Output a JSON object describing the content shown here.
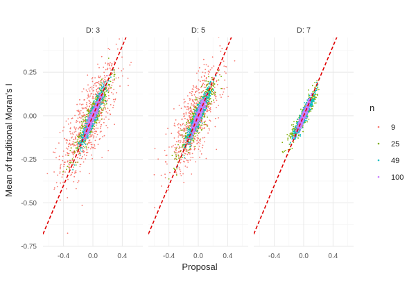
{
  "chart_data": {
    "type": "scatter",
    "title": "",
    "xlabel": "Proposal",
    "ylabel": "Mean of traditional Moran's I",
    "xlim": [
      -0.68,
      0.68
    ],
    "ylim": [
      -0.75,
      0.45
    ],
    "x_ticks": [
      -0.4,
      0.0,
      0.4
    ],
    "x_tick_labels": [
      "-0.4",
      "0.0",
      "0.4"
    ],
    "y_ticks": [
      -0.75,
      -0.5,
      -0.25,
      0.0,
      0.25
    ],
    "y_tick_labels": [
      "-0.75",
      "-0.50",
      "-0.25",
      "0.00",
      "0.25"
    ],
    "grid": true,
    "legend": {
      "title": "n",
      "position": "right",
      "entries": [
        {
          "label": "9",
          "color": "#F8766D"
        },
        {
          "label": "25",
          "color": "#7CAE00"
        },
        {
          "label": "49",
          "color": "#00BFC4"
        },
        {
          "label": "100",
          "color": "#C77CFF"
        }
      ]
    },
    "reference_line": {
      "slope": 1,
      "intercept": 0,
      "color": "#E00000",
      "style": "dashed"
    },
    "panels": [
      {
        "label": "D: 3",
        "series": [
          {
            "name": "9",
            "color": "#F8766D",
            "x_center": -0.05,
            "x_sd": 0.19,
            "slope": 0.62,
            "y_sd": 0.11,
            "count": 700,
            "x_range": [
              -0.62,
              0.62
            ]
          },
          {
            "name": "25",
            "color": "#7CAE00",
            "x_center": 0.0,
            "x_sd": 0.13,
            "slope": 0.82,
            "y_sd": 0.045,
            "count": 420,
            "x_range": [
              -0.45,
              0.45
            ]
          },
          {
            "name": "49",
            "color": "#00BFC4",
            "x_center": 0.0,
            "x_sd": 0.085,
            "slope": 0.92,
            "y_sd": 0.028,
            "count": 550,
            "x_range": [
              -0.3,
              0.3
            ]
          },
          {
            "name": "100",
            "color": "#C77CFF",
            "x_center": 0.0,
            "x_sd": 0.055,
            "slope": 0.96,
            "y_sd": 0.018,
            "count": 650,
            "x_range": [
              -0.2,
              0.2
            ]
          }
        ]
      },
      {
        "label": "D: 5",
        "series": [
          {
            "name": "9",
            "color": "#F8766D",
            "x_center": -0.05,
            "x_sd": 0.18,
            "slope": 0.6,
            "y_sd": 0.1,
            "count": 650,
            "x_range": [
              -0.6,
              0.6
            ]
          },
          {
            "name": "25",
            "color": "#7CAE00",
            "x_center": 0.0,
            "x_sd": 0.12,
            "slope": 0.8,
            "y_sd": 0.045,
            "count": 420,
            "x_range": [
              -0.42,
              0.42
            ]
          },
          {
            "name": "49",
            "color": "#00BFC4",
            "x_center": 0.0,
            "x_sd": 0.08,
            "slope": 0.9,
            "y_sd": 0.028,
            "count": 550,
            "x_range": [
              -0.28,
              0.28
            ]
          },
          {
            "name": "100",
            "color": "#C77CFF",
            "x_center": 0.0,
            "x_sd": 0.05,
            "slope": 0.95,
            "y_sd": 0.018,
            "count": 650,
            "x_range": [
              -0.18,
              0.18
            ]
          }
        ]
      },
      {
        "label": "D: 7",
        "series": [
          {
            "name": "9",
            "color": "#F8766D",
            "x_center": 0.0,
            "x_sd": 0.02,
            "slope": 0.9,
            "y_sd": 0.01,
            "count": 5,
            "x_range": [
              -0.04,
              0.04
            ]
          },
          {
            "name": "25",
            "color": "#7CAE00",
            "x_center": 0.0,
            "x_sd": 0.09,
            "slope": 0.75,
            "y_sd": 0.03,
            "count": 380,
            "x_range": [
              -0.3,
              0.3
            ]
          },
          {
            "name": "49",
            "color": "#00BFC4",
            "x_center": 0.0,
            "x_sd": 0.065,
            "slope": 0.85,
            "y_sd": 0.022,
            "count": 500,
            "x_range": [
              -0.22,
              0.22
            ]
          },
          {
            "name": "100",
            "color": "#C77CFF",
            "x_center": 0.0,
            "x_sd": 0.045,
            "slope": 0.92,
            "y_sd": 0.015,
            "count": 650,
            "x_range": [
              -0.15,
              0.15
            ]
          }
        ]
      }
    ]
  }
}
